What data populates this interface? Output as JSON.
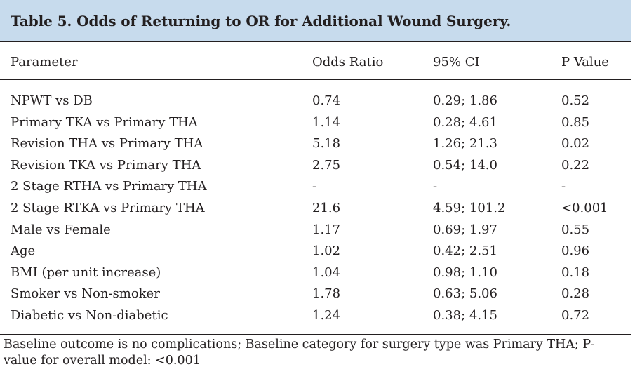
{
  "table": {
    "title": "Table 5. Odds of Returning to OR for Additional Wound Surgery.",
    "headers": [
      "Parameter",
      "Odds Ratio",
      "95% CI",
      "P Value"
    ],
    "rows": [
      [
        "NPWT vs DB",
        "0.74",
        "0.29; 1.86",
        "0.52"
      ],
      [
        "Primary TKA vs Primary THA",
        "1.14",
        "0.28; 4.61",
        "0.85"
      ],
      [
        "Revision THA vs Primary THA",
        "5.18",
        "1.26; 21.3",
        "0.02"
      ],
      [
        "Revision TKA vs Primary THA",
        "2.75",
        "0.54; 14.0",
        "0.22"
      ],
      [
        "2 Stage RTHA vs Primary THA",
        "-",
        "-",
        "-"
      ],
      [
        "2 Stage RTKA vs Primary THA",
        "21.6",
        "4.59; 101.2",
        "<0.001"
      ],
      [
        "Male vs Female",
        "1.17",
        "0.69; 1.97",
        "0.55"
      ],
      [
        "Age",
        "1.02",
        "0.42; 2.51",
        "0.96"
      ],
      [
        "BMI (per unit increase)",
        "1.04",
        "0.98; 1.10",
        "0.18"
      ],
      [
        "Smoker vs Non-smoker",
        "1.78",
        "0.63; 5.06",
        "0.28"
      ],
      [
        "Diabetic vs Non-diabetic",
        "1.24",
        "0.38; 4.15",
        "0.72"
      ]
    ],
    "footnote": "Baseline outcome is no complications; Baseline category for surgery type was Primary THA; P-value for overall model: <0.001"
  }
}
